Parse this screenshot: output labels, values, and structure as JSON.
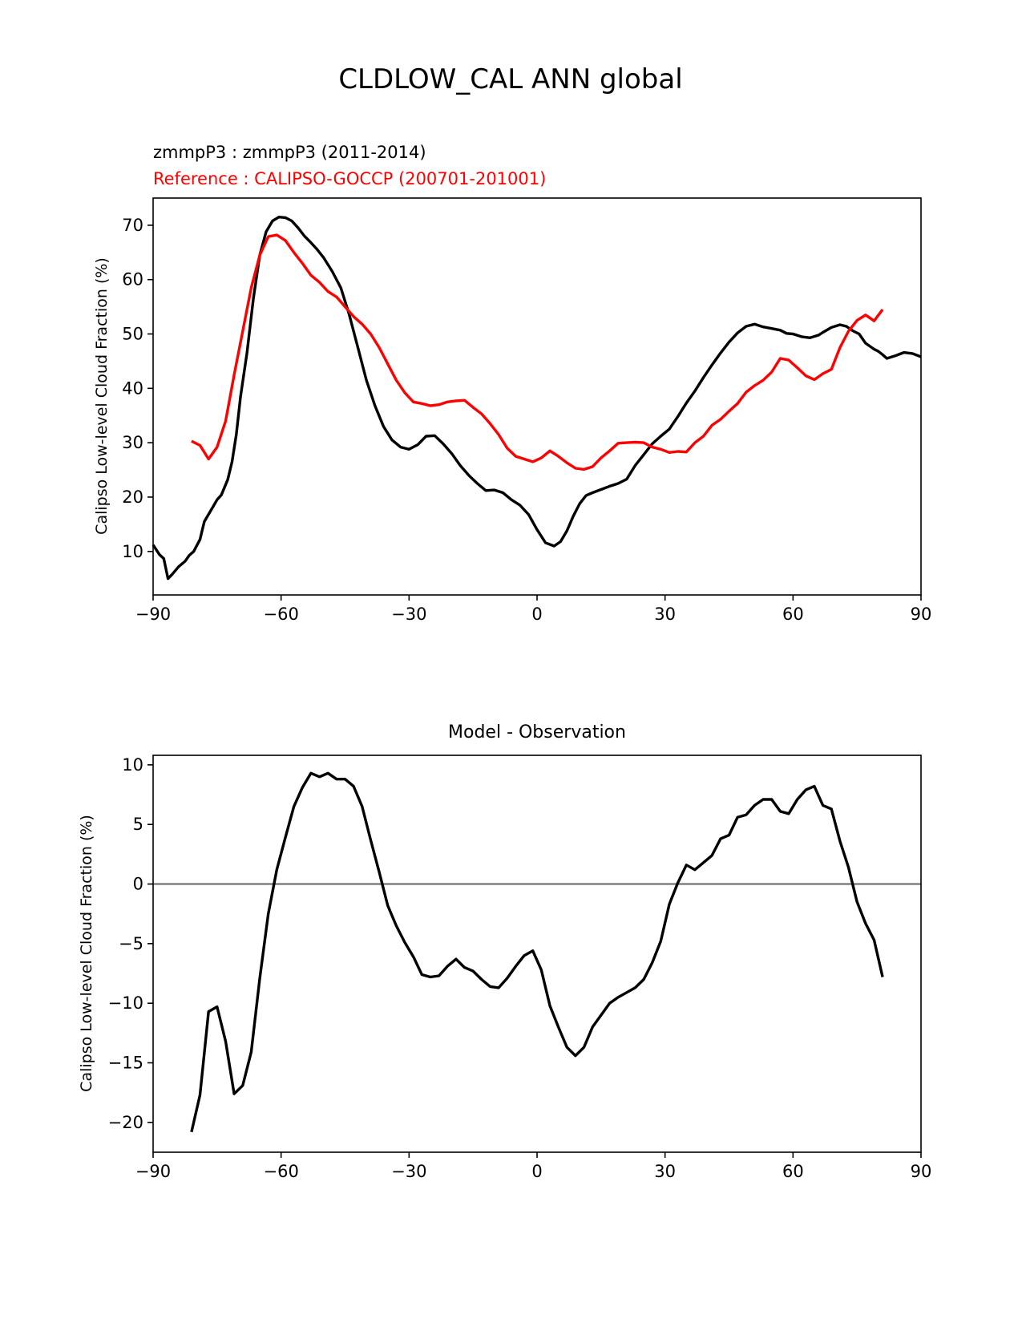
{
  "figure": {
    "title": "CLDLOW_CAL ANN global"
  },
  "chart_data": [
    {
      "type": "line",
      "test_label": "zmmpP3 : zmmpP3 (2011-2014)",
      "ref_label": "Reference : CALIPSO-GOCCP (200701-201001)",
      "xlabel": "",
      "ylabel": "Calipso Low-level Cloud Fraction (%)",
      "xlim": [
        -90,
        90
      ],
      "ylim": [
        2,
        75
      ],
      "xticks": [
        -90,
        -60,
        -30,
        0,
        30,
        60,
        90
      ],
      "xtick_labels": [
        "−90",
        "−60",
        "−30",
        "0",
        "30",
        "60",
        "90"
      ],
      "yticks": [
        10,
        20,
        30,
        40,
        50,
        60,
        70
      ],
      "ytick_labels": [
        "10",
        "20",
        "30",
        "40",
        "50",
        "60",
        "70"
      ],
      "series": [
        {
          "name": "zmmpP3",
          "color": "#000000",
          "x": [
            -90,
            -88.5,
            -87.5,
            -86.5,
            -85.5,
            -84,
            -82.5,
            -81.5,
            -80.5,
            -79,
            -78,
            -76.5,
            -75,
            -74,
            -72.5,
            -71.5,
            -70.5,
            -69.5,
            -68,
            -66.5,
            -65,
            -63.5,
            -62,
            -60.5,
            -59,
            -57.5,
            -56,
            -54.5,
            -53,
            -51.5,
            -50,
            -48,
            -46,
            -44,
            -42,
            -40,
            -38,
            -36,
            -34,
            -32,
            -30,
            -28,
            -26,
            -24,
            -22,
            -20,
            -18,
            -16,
            -14,
            -12,
            -10,
            -8,
            -6,
            -4,
            -2,
            0,
            2,
            4,
            5.5,
            7,
            8.5,
            10,
            11.5,
            13,
            15,
            17,
            19,
            21,
            23,
            25,
            27,
            29,
            31,
            33,
            35,
            37,
            39,
            41,
            43,
            45,
            47,
            49,
            51,
            53,
            55,
            57,
            58.5,
            60,
            62,
            64,
            66,
            67,
            69,
            71,
            72.5,
            74,
            75.5,
            77,
            79,
            80,
            81,
            82,
            84,
            86,
            88,
            90
          ],
          "values": [
            11.2,
            9.4,
            8.7,
            5.0,
            5.8,
            7.2,
            8.2,
            9.3,
            10.0,
            12.2,
            15.5,
            17.5,
            19.5,
            20.4,
            23.2,
            26.5,
            31.5,
            38.5,
            46.5,
            56.5,
            64.5,
            68.8,
            70.8,
            71.5,
            71.4,
            70.8,
            69.5,
            68.0,
            66.8,
            65.5,
            64.0,
            61.5,
            58.5,
            53.5,
            47.5,
            41.5,
            36.8,
            33.0,
            30.5,
            29.2,
            28.8,
            29.6,
            31.2,
            31.3,
            29.8,
            28.0,
            25.8,
            24.0,
            22.5,
            21.2,
            21.3,
            20.8,
            19.5,
            18.5,
            16.8,
            14.0,
            11.6,
            11.0,
            11.8,
            13.8,
            16.5,
            18.8,
            20.3,
            20.8,
            21.4,
            22.0,
            22.5,
            23.3,
            25.8,
            27.8,
            29.8,
            31.2,
            32.5,
            34.8,
            37.3,
            39.5,
            42.0,
            44.3,
            46.5,
            48.5,
            50.2,
            51.4,
            51.8,
            51.3,
            51.0,
            50.7,
            50.1,
            50.0,
            49.5,
            49.3,
            49.8,
            50.3,
            51.2,
            51.7,
            51.4,
            50.6,
            50.0,
            48.3,
            47.2,
            46.8,
            46.2,
            45.5,
            46.0,
            46.6,
            46.4,
            45.8
          ]
        },
        {
          "name": "CALIPSO-GOCCP",
          "color": "#ff0000",
          "x": [
            -81,
            -79,
            -77,
            -75,
            -73,
            -71,
            -69,
            -67,
            -65,
            -63,
            -61,
            -59,
            -57,
            -55,
            -53,
            -51,
            -49,
            -47,
            -45,
            -43,
            -41,
            -39,
            -37,
            -35,
            -33,
            -31,
            -29,
            -27,
            -25,
            -23,
            -21,
            -19,
            -17,
            -15,
            -13,
            -11,
            -9,
            -7,
            -5,
            -3,
            -1,
            1,
            3,
            5,
            7,
            9,
            11,
            13,
            15,
            17,
            19,
            21,
            23,
            25,
            27,
            29,
            31,
            33,
            35,
            37,
            39,
            41,
            43,
            45,
            47,
            49,
            51,
            53,
            55,
            57,
            59,
            61,
            63,
            65,
            67,
            69,
            71,
            73,
            75,
            77,
            79,
            81
          ],
          "values": [
            30.3,
            29.5,
            27.0,
            29.2,
            34.0,
            42.5,
            50.5,
            58.5,
            64.5,
            67.9,
            68.2,
            67.2,
            65.0,
            63.0,
            60.8,
            59.5,
            57.8,
            56.8,
            55.0,
            53.2,
            51.8,
            50.0,
            47.5,
            44.5,
            41.5,
            39.2,
            37.5,
            37.2,
            36.8,
            37.0,
            37.5,
            37.7,
            37.8,
            36.5,
            35.3,
            33.5,
            31.5,
            29.0,
            27.5,
            27.0,
            26.5,
            27.2,
            28.5,
            27.5,
            26.3,
            25.3,
            25.1,
            25.6,
            27.2,
            28.5,
            29.9,
            30.0,
            30.1,
            30.0,
            29.2,
            28.8,
            28.2,
            28.4,
            28.3,
            30.0,
            31.2,
            33.2,
            34.3,
            35.8,
            37.2,
            39.3,
            40.5,
            41.5,
            43.0,
            45.5,
            45.2,
            43.8,
            42.3,
            41.6,
            42.7,
            43.5,
            47.5,
            50.5,
            52.5,
            53.5,
            52.4,
            54.5
          ]
        }
      ]
    },
    {
      "type": "line",
      "title": "Model - Observation",
      "xlabel": "",
      "ylabel": "Calipso Low-level Cloud Fraction (%)",
      "xlim": [
        -90,
        90
      ],
      "ylim": [
        -22.5,
        10.8
      ],
      "xticks": [
        -90,
        -60,
        -30,
        0,
        30,
        60,
        90
      ],
      "xtick_labels": [
        "−90",
        "−60",
        "−30",
        "0",
        "30",
        "60",
        "90"
      ],
      "yticks": [
        10,
        5,
        0,
        -5,
        -10,
        -15,
        -20
      ],
      "ytick_labels": [
        "10",
        "5",
        "0",
        "−5",
        "−10",
        "−15",
        "−20"
      ],
      "zero_line_color": "#808080",
      "series": [
        {
          "name": "Model - Observation",
          "color": "#000000",
          "x": [
            -81,
            -79,
            -77,
            -75,
            -73,
            -71,
            -69,
            -67,
            -65,
            -63,
            -61,
            -59,
            -57,
            -55,
            -53,
            -51,
            -49,
            -47,
            -45,
            -43,
            -41,
            -39,
            -37,
            -35,
            -33,
            -31,
            -29,
            -27,
            -25,
            -23,
            -21,
            -19,
            -17,
            -15,
            -13,
            -11,
            -9,
            -7,
            -5,
            -3,
            -1,
            1,
            3,
            5,
            7,
            9,
            11,
            13,
            15,
            17,
            19,
            21,
            23,
            25,
            27,
            29,
            31,
            33,
            35,
            37,
            39,
            41,
            43,
            45,
            47,
            49,
            51,
            53,
            55,
            57,
            59,
            61,
            63,
            65,
            67,
            69,
            71,
            73,
            75,
            77,
            79,
            81
          ],
          "values": [
            -20.8,
            -17.7,
            -10.7,
            -10.3,
            -13.2,
            -17.6,
            -16.9,
            -14.1,
            -7.9,
            -2.5,
            1.2,
            3.9,
            6.5,
            8.1,
            9.3,
            9.0,
            9.3,
            8.8,
            8.8,
            8.2,
            6.5,
            3.7,
            1.0,
            -1.8,
            -3.5,
            -4.9,
            -6.1,
            -7.6,
            -7.8,
            -7.7,
            -6.9,
            -6.3,
            -7.0,
            -7.3,
            -8.0,
            -8.6,
            -8.7,
            -7.9,
            -6.9,
            -6.0,
            -5.6,
            -7.2,
            -10.2,
            -12.0,
            -13.7,
            -14.4,
            -13.7,
            -12.0,
            -11.0,
            -10.0,
            -9.5,
            -9.1,
            -8.7,
            -8.0,
            -6.6,
            -4.8,
            -1.7,
            0.1,
            1.6,
            1.2,
            1.8,
            2.4,
            3.8,
            4.1,
            5.6,
            5.8,
            6.6,
            7.1,
            7.1,
            6.1,
            5.9,
            7.1,
            7.9,
            8.2,
            6.6,
            6.3,
            3.6,
            1.4,
            -1.5,
            -3.3,
            -4.7,
            -7.8
          ]
        }
      ]
    }
  ]
}
